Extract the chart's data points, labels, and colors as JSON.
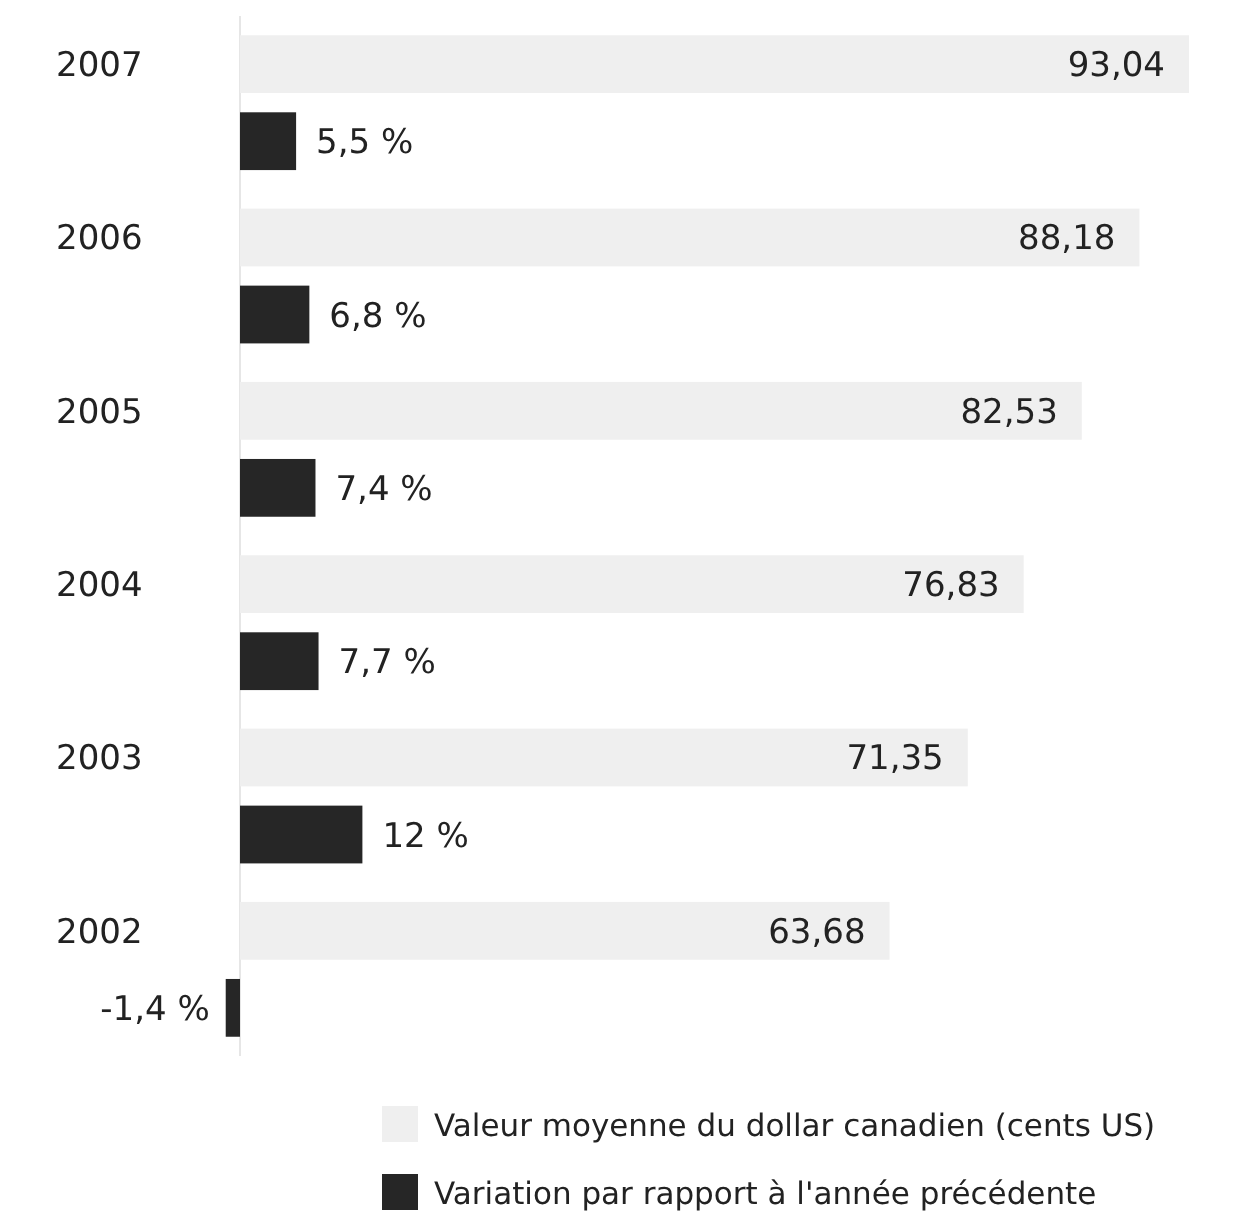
{
  "chart_data": {
    "type": "bar",
    "orientation": "horizontal",
    "categories": [
      "2007",
      "2006",
      "2005",
      "2004",
      "2003",
      "2002"
    ],
    "series": [
      {
        "name": "Valeur moyenne du dollar canadien (cents US)",
        "color": "#efefef",
        "values": [
          93.04,
          88.18,
          82.53,
          76.83,
          71.35,
          63.68
        ],
        "value_labels": [
          "93,04",
          "88,18",
          "82,53",
          "76,83",
          "71,35",
          "63,68"
        ]
      },
      {
        "name": "Variation par rapport à l'année précédente",
        "color": "#262626",
        "values": [
          5.5,
          6.8,
          7.4,
          7.7,
          12,
          -1.4
        ],
        "value_labels": [
          "5,5 %",
          "6,8 %",
          "7,4 %",
          "7,7 %",
          "12 %",
          "-1,4 %"
        ]
      }
    ],
    "legend": "bottom right"
  }
}
